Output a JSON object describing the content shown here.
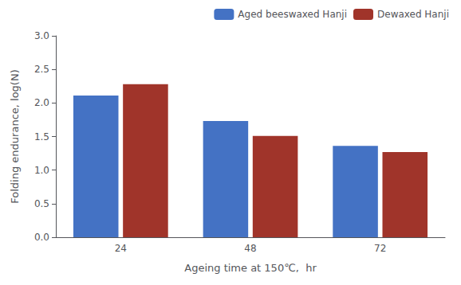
{
  "chart_data": {
    "type": "bar",
    "categories": [
      "24",
      "48",
      "72"
    ],
    "series": [
      {
        "name": "Aged beeswaxed Hanji",
        "color": "#4472C4",
        "values": [
          2.11,
          1.73,
          1.36
        ]
      },
      {
        "name": "Dewaxed Hanji",
        "color": "#A0342A",
        "values": [
          2.28,
          1.51,
          1.27
        ]
      }
    ],
    "xlabel": "Ageing time at 150℃,  hr",
    "ylabel": "Folding endurance, log(N)",
    "ylim": [
      0.0,
      3.0
    ],
    "yticks": [
      {
        "value": 0,
        "label": "0.0"
      },
      0.5,
      {
        "value": 1,
        "label": "1.0"
      },
      1.5,
      {
        "value": 2,
        "label": "2.0"
      },
      2.5,
      {
        "value": 3,
        "label": "3.0"
      }
    ],
    "grid": false,
    "legend": "upper right"
  }
}
